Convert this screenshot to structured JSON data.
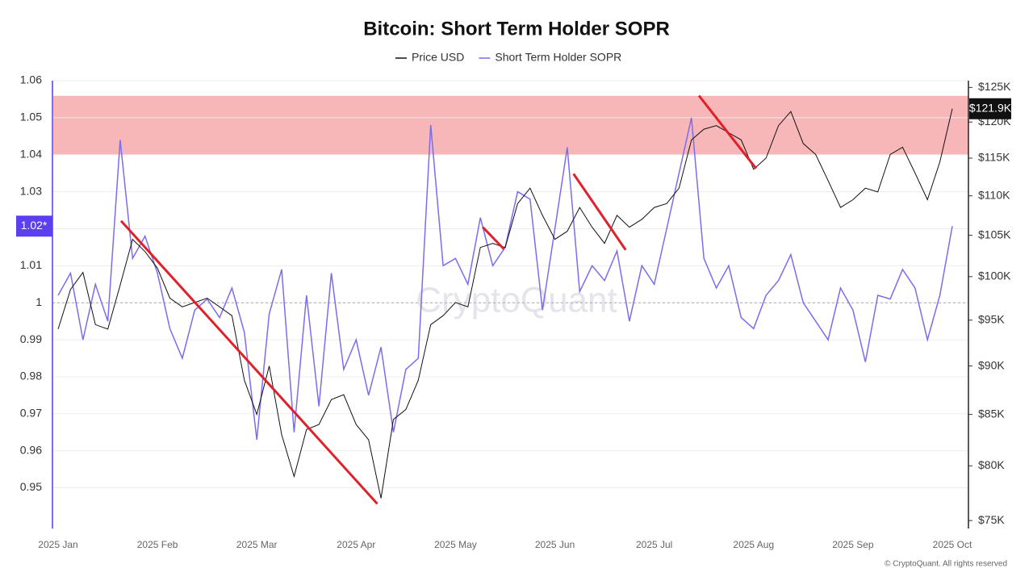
{
  "chart_data": {
    "type": "line",
    "title": "Bitcoin: Short Term Holder SOPR",
    "watermark": "CryptoQuant",
    "footer": "© CryptoQuant. All rights reserved",
    "categories": [
      "2025 Jan",
      null,
      null,
      null,
      null,
      null,
      null,
      null,
      "2025 Feb",
      null,
      null,
      null,
      null,
      null,
      null,
      null,
      "2025 Mar",
      null,
      null,
      null,
      null,
      null,
      null,
      null,
      "2025 Apr",
      null,
      null,
      null,
      null,
      null,
      null,
      null,
      "2025 May",
      null,
      null,
      null,
      null,
      null,
      null,
      null,
      "2025 Jun",
      null,
      null,
      null,
      null,
      null,
      null,
      null,
      "2025 Jul",
      null,
      null,
      null,
      null,
      null,
      null,
      null,
      "2025 Aug",
      null,
      null,
      null,
      null,
      null,
      null,
      null,
      "2025 Sep",
      null,
      null,
      null,
      null,
      null,
      null,
      null,
      "2025 Oct"
    ],
    "series": [
      {
        "name": "Price USD",
        "color": "#111111",
        "axis": "y2",
        "values": [
          94000,
          98500,
          100500,
          94500,
          94000,
          99000,
          104500,
          103000,
          101000,
          97500,
          96500,
          97000,
          97500,
          96500,
          95500,
          88500,
          85000,
          90000,
          83000,
          79000,
          83500,
          84000,
          86500,
          87000,
          84000,
          82500,
          77000,
          84500,
          85500,
          88500,
          94500,
          95500,
          97000,
          96500,
          103500,
          104000,
          103500,
          109000,
          111000,
          107500,
          104500,
          105500,
          108500,
          106000,
          104000,
          107500,
          106000,
          107000,
          108500,
          109000,
          111000,
          117500,
          119000,
          119500,
          118500,
          117500,
          113500,
          115000,
          119500,
          121500,
          117000,
          115500,
          112000,
          108500,
          109500,
          111000,
          110500,
          115500,
          116500,
          113000,
          109500,
          114500,
          121900
        ]
      },
      {
        "name": "Short Term Holder SOPR",
        "color": "#7b6cf0",
        "values": [
          1.002,
          1.008,
          0.99,
          1.005,
          0.995,
          1.044,
          1.012,
          1.018,
          1.008,
          0.993,
          0.985,
          0.998,
          1.001,
          0.996,
          1.004,
          0.992,
          0.963,
          0.997,
          1.009,
          0.965,
          1.002,
          0.972,
          1.008,
          0.982,
          0.99,
          0.975,
          0.988,
          0.965,
          0.982,
          0.985,
          1.048,
          1.01,
          1.012,
          1.005,
          1.023,
          1.01,
          1.015,
          1.03,
          1.028,
          0.998,
          1.02,
          1.042,
          1.003,
          1.01,
          1.006,
          1.014,
          0.995,
          1.01,
          1.005,
          1.02,
          1.035,
          1.05,
          1.012,
          1.004,
          1.01,
          0.996,
          0.993,
          1.002,
          1.006,
          1.013,
          1,
          0.995,
          0.99,
          1.004,
          0.998,
          0.984,
          1.002,
          1.001,
          1.009,
          1.004,
          0.99,
          1.002,
          1.0207
        ]
      }
    ],
    "ylim": [
      0.939,
      1.06
    ],
    "yticks": [
      0.95,
      0.96,
      0.97,
      0.98,
      0.99,
      1,
      1.01,
      1.02,
      1.03,
      1.04,
      1.05,
      1.06
    ],
    "y2lim": [
      74300,
      126000
    ],
    "y2scale": "log",
    "y2ticks": [
      {
        "value": 75000,
        "label": "$75K"
      },
      {
        "value": 80000,
        "label": "$80K"
      },
      {
        "value": 85000,
        "label": "$85K"
      },
      {
        "value": 90000,
        "label": "$90K"
      },
      {
        "value": 95000,
        "label": "$95K"
      },
      {
        "value": 100000,
        "label": "$100K"
      },
      {
        "value": 105000,
        "label": "$105K"
      },
      {
        "value": 110000,
        "label": "$110K"
      },
      {
        "value": 115000,
        "label": "$115K"
      },
      {
        "value": 120000,
        "label": "$120K"
      },
      {
        "value": 125000,
        "label": "$125K"
      }
    ],
    "grid": true,
    "reference_line": 1,
    "bands": [
      {
        "from": 1.04,
        "to": 1.0559,
        "color": "#f7b6b8"
      }
    ],
    "trend_lines": [
      {
        "x1": 5.07,
        "y1": 106800,
        "x2": 25.7,
        "y2": 76500,
        "color": "#e0202a"
      },
      {
        "x1": 34.2,
        "y1": 106000,
        "x2": 35.9,
        "y2": 103300,
        "color": "#e0202a"
      },
      {
        "x1": 41.5,
        "y1": 112900,
        "x2": 45.7,
        "y2": 103200,
        "color": "#e0202a"
      },
      {
        "x1": 51.6,
        "y1": 123800,
        "x2": 56.2,
        "y2": 113600,
        "color": "#e0202a"
      }
    ],
    "y_marker": {
      "value": 1.0207,
      "label": "1.02*"
    },
    "y2_marker": {
      "value": 121900,
      "label": "$121.9K"
    }
  }
}
